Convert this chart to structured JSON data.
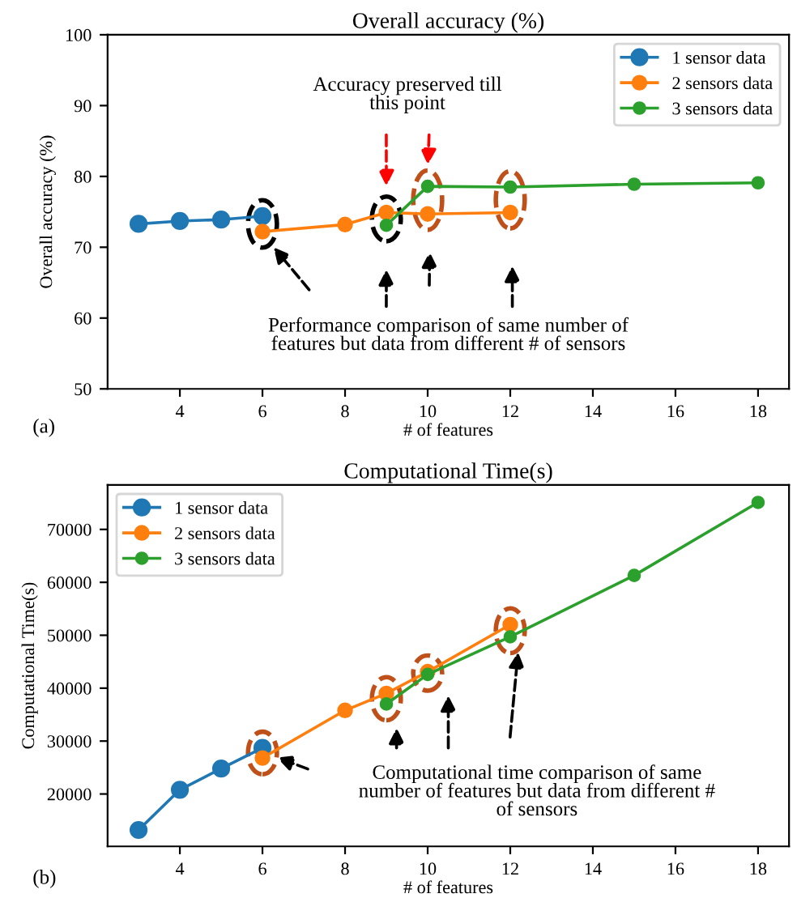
{
  "chart_data": [
    {
      "type": "line",
      "title": "Overall accuracy (%)",
      "xlabel": "# of features",
      "ylabel": "Overall accuracy (%)",
      "xlim": [
        2.25,
        18.75
      ],
      "xticks": [
        4,
        6,
        8,
        10,
        12,
        14,
        16,
        18
      ],
      "ylim": [
        50,
        100
      ],
      "yticks": [
        50,
        60,
        70,
        80,
        90,
        100
      ],
      "marker": "circle",
      "line_style": "solid",
      "grid": false,
      "legend": "top right",
      "series": [
        {
          "name": "1 sensor data",
          "color": "#1f77b4",
          "x": [
            3,
            4,
            5,
            6
          ],
          "values": [
            73.3,
            73.7,
            73.9,
            74.4
          ]
        },
        {
          "name": "2 sensors data",
          "color": "#ff7f0e",
          "x": [
            6,
            8,
            9,
            10,
            12
          ],
          "values": [
            72.2,
            73.2,
            74.9,
            74.7,
            74.9
          ]
        },
        {
          "name": "3 sensors data",
          "color": "#2ca02c",
          "x": [
            9,
            10,
            12,
            15,
            18
          ],
          "values": [
            73.1,
            78.6,
            78.5,
            78.9,
            79.1
          ]
        }
      ],
      "annotations": [
        "Accuracy preserved till\nthis point",
        "Performance comparison of same number of\nfeatures but data from different # of sensors",
        "(a)"
      ]
    },
    {
      "type": "line",
      "title": "Computational Time(s)",
      "xlabel": "# of features",
      "ylabel": "Computational Time(s)",
      "xlim": [
        2.25,
        18.75
      ],
      "xticks": [
        4,
        6,
        8,
        10,
        12,
        14,
        16,
        18
      ],
      "ylim": [
        10100,
        78400
      ],
      "yticks": [
        20000,
        30000,
        40000,
        50000,
        60000,
        70000
      ],
      "marker": "circle",
      "line_style": "solid",
      "grid": false,
      "legend": "top left",
      "series": [
        {
          "name": "1 sensor data",
          "color": "#1f77b4",
          "x": [
            3,
            4,
            5,
            6
          ],
          "values": [
            13200,
            20800,
            24800,
            28700
          ]
        },
        {
          "name": "2 sensors data",
          "color": "#ff7f0e",
          "x": [
            6,
            8,
            9,
            10,
            12
          ],
          "values": [
            26800,
            35800,
            39000,
            43100,
            52000
          ]
        },
        {
          "name": "3 sensors data",
          "color": "#2ca02c",
          "x": [
            9,
            10,
            12,
            15,
            18
          ],
          "values": [
            37000,
            42600,
            49700,
            61300,
            75100
          ]
        }
      ],
      "annotations": [
        "Computational time comparison of same\nnumber of features but data from different #\nof sensors",
        "(b)"
      ]
    }
  ]
}
